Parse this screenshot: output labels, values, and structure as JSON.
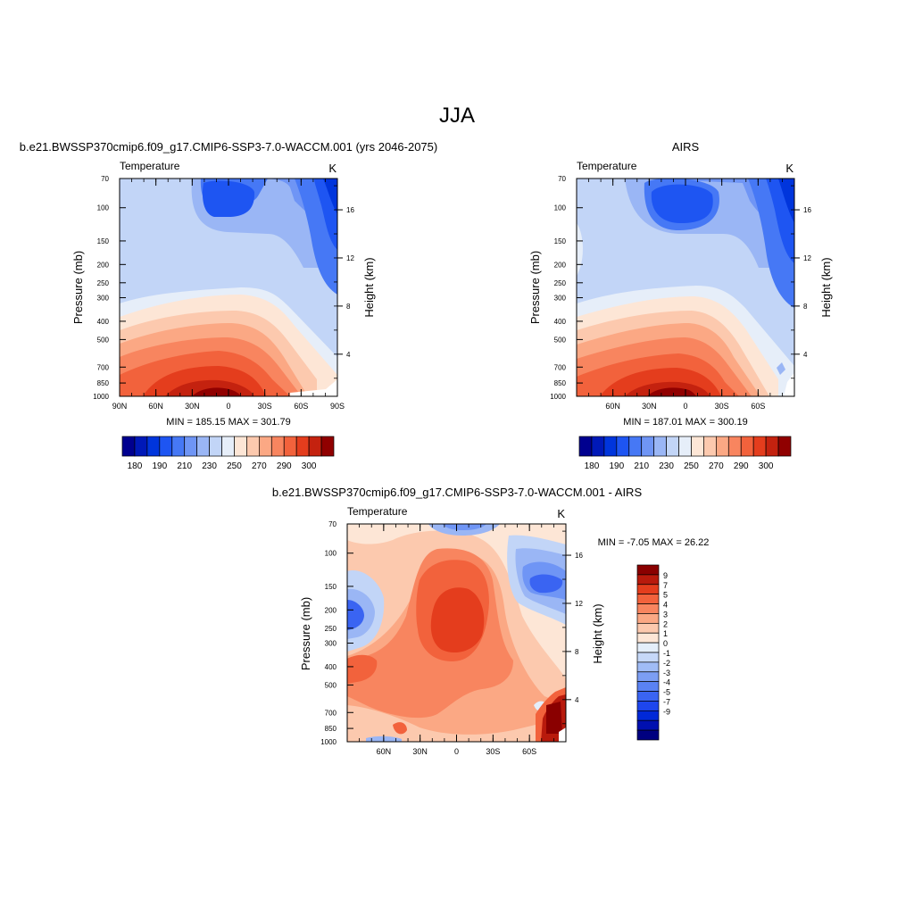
{
  "figure": {
    "title": "JJA",
    "colors": {
      "temperature_scale": [
        "#00008f",
        "#0019b8",
        "#0035dc",
        "#1e55f2",
        "#4678f5",
        "#6f95f5",
        "#9ab6f5",
        "#c2d5f7",
        "#e6eef9",
        "#fde6d6",
        "#fcc9ae",
        "#fba884",
        "#f8855f",
        "#f2623c",
        "#e43d1d",
        "#c4220f",
        "#900000"
      ],
      "difference_scale": [
        "#000080",
        "#0010b0",
        "#0028d8",
        "#1e46ee",
        "#3a64f2",
        "#5a82f3",
        "#7c9ef4",
        "#a0bcf6",
        "#c6d8f8",
        "#e4eefa",
        "#fde6d6",
        "#fcc9ae",
        "#fba884",
        "#f8855f",
        "#f2623c",
        "#e43d1d",
        "#b81a0c",
        "#8a0000"
      ]
    }
  },
  "chart_data": [
    {
      "type": "heatmap",
      "title": "b.e21.BWSSP370cmip6.f09_g17.CMIP6-SSP3-7.0-WACCM.001 (yrs 2046-2075)",
      "left_label": "Temperature",
      "right_label": "K",
      "xlabel": "",
      "ylabel": "Pressure (mb)",
      "y2label": "Height (km)",
      "x_ticks": [
        "90N",
        "60N",
        "30N",
        "0",
        "30S",
        "60S",
        "90S"
      ],
      "x_range": [
        90,
        -90
      ],
      "y_ticks": [
        70,
        100,
        150,
        200,
        250,
        300,
        400,
        500,
        700,
        850,
        1000
      ],
      "y_range": [
        1000,
        70
      ],
      "y2_ticks": [
        4,
        8,
        12,
        16
      ],
      "stats": "MIN = 185.15  MAX = 301.79",
      "min": 185.15,
      "max": 301.79,
      "colorbar": {
        "labels": [
          "180",
          "190",
          "210",
          "230",
          "250",
          "270",
          "290",
          "300"
        ],
        "levels": 17
      }
    },
    {
      "type": "heatmap",
      "title": "AIRS",
      "left_label": "Temperature",
      "right_label": "K",
      "xlabel": "",
      "ylabel": "Pressure (mb)",
      "y2label": "Height (km)",
      "x_ticks": [
        "60N",
        "30N",
        "0",
        "30S",
        "60S"
      ],
      "x_range": [
        90,
        -90
      ],
      "y_ticks": [
        70,
        100,
        150,
        200,
        250,
        300,
        400,
        500,
        700,
        850,
        1000
      ],
      "y_range": [
        1000,
        70
      ],
      "y2_ticks": [
        4,
        8,
        12,
        16
      ],
      "stats": "MIN = 187.01  MAX = 300.19",
      "min": 187.01,
      "max": 300.19,
      "colorbar": {
        "labels": [
          "180",
          "190",
          "210",
          "230",
          "250",
          "270",
          "290",
          "300"
        ],
        "levels": 17
      }
    },
    {
      "type": "heatmap",
      "title": "b.e21.BWSSP370cmip6.f09_g17.CMIP6-SSP3-7.0-WACCM.001 - AIRS",
      "left_label": "Temperature",
      "right_label": "K",
      "xlabel": "",
      "ylabel": "Pressure (mb)",
      "y2label": "Height (km)",
      "x_ticks": [
        "60N",
        "30N",
        "0",
        "30S",
        "60S"
      ],
      "x_range": [
        90,
        -90
      ],
      "y_ticks": [
        70,
        100,
        150,
        200,
        250,
        300,
        400,
        500,
        700,
        850,
        1000
      ],
      "y_range": [
        1000,
        70
      ],
      "y2_ticks": [
        4,
        8,
        12,
        16
      ],
      "stats": "MIN =  -7.05  MAX =  26.22",
      "min": -7.05,
      "max": 26.22,
      "colorbar": {
        "labels": [
          "9",
          "7",
          "5",
          "4",
          "3",
          "2",
          "1",
          "0",
          "-1",
          "-2",
          "-3",
          "-4",
          "-5",
          "-7",
          "-9"
        ],
        "levels": 18
      }
    }
  ]
}
